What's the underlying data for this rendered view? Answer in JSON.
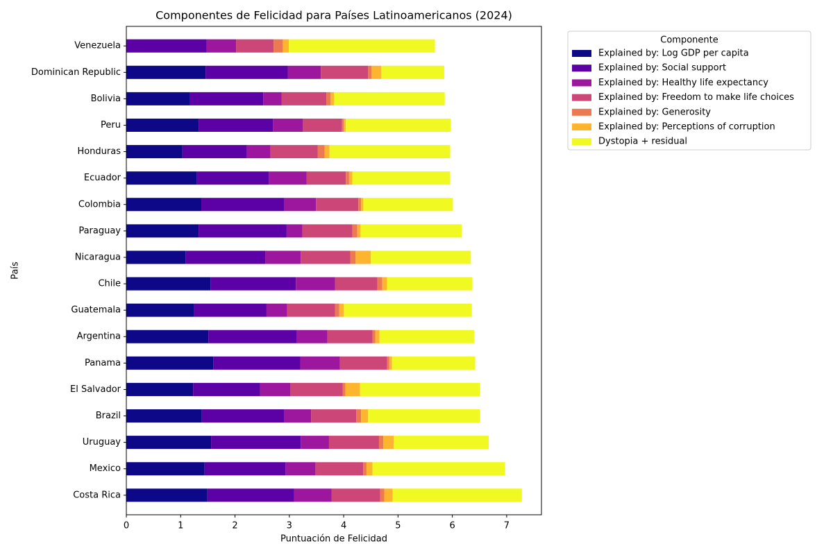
{
  "chart_data": {
    "type": "barh_stacked",
    "title": "Componentes de Felicidad para Países Latinoamericanos (2024)",
    "x_label": "Puntuación de Felicidad",
    "y_label": "País",
    "legend_title": "Componente",
    "legend_position": "outside upper right",
    "categories": [
      "Costa Rica",
      "Mexico",
      "Uruguay",
      "Brazil",
      "El Salvador",
      "Panama",
      "Argentina",
      "Guatemala",
      "Chile",
      "Nicaragua",
      "Paraguay",
      "Colombia",
      "Ecuador",
      "Honduras",
      "Peru",
      "Bolivia",
      "Dominican Republic",
      "Venezuela"
    ],
    "series": [
      {
        "name": "Explained by: Log GDP per capita",
        "color": "#0d0887",
        "values": [
          1.49,
          1.44,
          1.56,
          1.39,
          1.23,
          1.6,
          1.51,
          1.25,
          1.55,
          1.09,
          1.33,
          1.38,
          1.3,
          1.03,
          1.33,
          1.17,
          1.46,
          0
        ]
      },
      {
        "name": "Explained by: Social support",
        "color": "#5c01a6",
        "values": [
          1.6,
          1.49,
          1.65,
          1.52,
          1.23,
          1.6,
          1.62,
          1.33,
          1.57,
          1.47,
          1.62,
          1.52,
          1.32,
          1.19,
          1.37,
          1.35,
          1.51,
          1.48
        ]
      },
      {
        "name": "Explained by: Healthy life expectancy",
        "color": "#9c179e",
        "values": [
          0.69,
          0.55,
          0.52,
          0.49,
          0.56,
          0.73,
          0.57,
          0.38,
          0.72,
          0.65,
          0.29,
          0.59,
          0.7,
          0.43,
          0.55,
          0.34,
          0.61,
          0.54
        ]
      },
      {
        "name": "Explained by: Freedom to make life choices",
        "color": "#cc4778",
        "values": [
          0.89,
          0.88,
          0.92,
          0.83,
          0.96,
          0.87,
          0.83,
          0.88,
          0.78,
          0.91,
          0.92,
          0.78,
          0.72,
          0.87,
          0.72,
          0.82,
          0.87,
          0.69
        ]
      },
      {
        "name": "Explained by: Generosity",
        "color": "#ed7953",
        "values": [
          0.08,
          0.06,
          0.08,
          0.09,
          0.05,
          0.04,
          0.05,
          0.08,
          0.09,
          0.1,
          0.09,
          0.05,
          0.06,
          0.13,
          0.03,
          0.08,
          0.06,
          0.17
        ]
      },
      {
        "name": "Explained by: Perceptions of corruption",
        "color": "#fdb42f",
        "values": [
          0.15,
          0.11,
          0.19,
          0.13,
          0.27,
          0.05,
          0.08,
          0.08,
          0.09,
          0.28,
          0.06,
          0.04,
          0.06,
          0.09,
          0.04,
          0.06,
          0.18,
          0.11
        ]
      },
      {
        "name": "Dystopia + residual",
        "color": "#f0f921",
        "values": [
          2.38,
          2.44,
          1.75,
          2.06,
          2.21,
          1.53,
          1.74,
          2.36,
          1.57,
          1.84,
          1.86,
          1.65,
          1.8,
          2.22,
          1.93,
          2.04,
          1.16,
          2.69
        ]
      }
    ],
    "xlim": [
      0,
      7.64
    ],
    "xticks": [
      0,
      1,
      2,
      3,
      4,
      5,
      6,
      7
    ]
  }
}
